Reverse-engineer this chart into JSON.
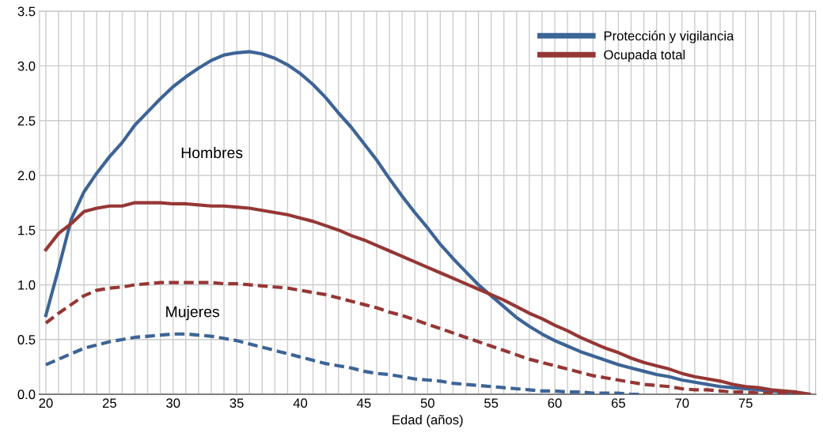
{
  "chart_data": {
    "type": "line",
    "xlabel": "Edad (años)",
    "x": [
      20,
      21,
      22,
      23,
      24,
      25,
      26,
      27,
      28,
      29,
      30,
      31,
      32,
      33,
      34,
      35,
      36,
      37,
      38,
      39,
      40,
      41,
      42,
      43,
      44,
      45,
      46,
      47,
      48,
      49,
      50,
      51,
      52,
      53,
      54,
      55,
      56,
      57,
      58,
      59,
      60,
      61,
      62,
      63,
      64,
      65,
      66,
      67,
      68,
      69,
      70,
      71,
      72,
      73,
      74,
      75,
      76,
      77,
      78,
      79,
      80
    ],
    "series": [
      {
        "name": "Protección y vigilancia",
        "color": "#3d6496",
        "line_style": "solid",
        "values": [
          0.72,
          1.15,
          1.6,
          1.85,
          2.02,
          2.17,
          2.3,
          2.46,
          2.58,
          2.7,
          2.81,
          2.9,
          2.98,
          3.05,
          3.1,
          3.12,
          3.13,
          3.11,
          3.07,
          3.01,
          2.93,
          2.83,
          2.71,
          2.57,
          2.44,
          2.29,
          2.14,
          1.97,
          1.81,
          1.66,
          1.52,
          1.37,
          1.24,
          1.12,
          1.0,
          0.9,
          0.8,
          0.7,
          0.62,
          0.55,
          0.49,
          0.44,
          0.39,
          0.35,
          0.31,
          0.27,
          0.24,
          0.21,
          0.18,
          0.16,
          0.13,
          0.11,
          0.09,
          0.07,
          0.06,
          0.05,
          0.04,
          0.03,
          0.02,
          0.01,
          0.0
        ]
      },
      {
        "name": "Ocupada total",
        "color": "#953735",
        "line_style": "solid",
        "values": [
          1.32,
          1.47,
          1.56,
          1.67,
          1.7,
          1.72,
          1.72,
          1.75,
          1.75,
          1.75,
          1.74,
          1.74,
          1.73,
          1.72,
          1.72,
          1.71,
          1.7,
          1.68,
          1.66,
          1.64,
          1.61,
          1.58,
          1.54,
          1.5,
          1.45,
          1.41,
          1.36,
          1.31,
          1.26,
          1.21,
          1.16,
          1.11,
          1.06,
          1.01,
          0.96,
          0.91,
          0.86,
          0.8,
          0.74,
          0.69,
          0.63,
          0.58,
          0.52,
          0.47,
          0.42,
          0.38,
          0.33,
          0.29,
          0.26,
          0.23,
          0.19,
          0.16,
          0.14,
          0.12,
          0.09,
          0.07,
          0.06,
          0.04,
          0.03,
          0.02,
          0.0
        ]
      },
      {
        "color": "#953735",
        "line_style": "dashed",
        "values": [
          0.65,
          0.74,
          0.82,
          0.9,
          0.95,
          0.97,
          0.98,
          1.0,
          1.01,
          1.02,
          1.02,
          1.02,
          1.02,
          1.02,
          1.01,
          1.01,
          1.0,
          0.99,
          0.98,
          0.97,
          0.95,
          0.93,
          0.91,
          0.88,
          0.85,
          0.82,
          0.79,
          0.75,
          0.72,
          0.68,
          0.64,
          0.6,
          0.56,
          0.52,
          0.48,
          0.44,
          0.4,
          0.36,
          0.32,
          0.29,
          0.26,
          0.23,
          0.2,
          0.17,
          0.15,
          0.13,
          0.11,
          0.09,
          0.08,
          0.07,
          0.05,
          0.04,
          0.04,
          0.03,
          0.02,
          0.02,
          0.01,
          0.01,
          0.01,
          0.0,
          0.0
        ]
      },
      {
        "color": "#3d6496",
        "line_style": "dashed",
        "values": [
          0.27,
          0.32,
          0.37,
          0.42,
          0.45,
          0.48,
          0.5,
          0.52,
          0.53,
          0.54,
          0.55,
          0.55,
          0.54,
          0.53,
          0.51,
          0.49,
          0.46,
          0.43,
          0.4,
          0.37,
          0.34,
          0.31,
          0.28,
          0.26,
          0.24,
          0.21,
          0.19,
          0.18,
          0.16,
          0.14,
          0.13,
          0.12,
          0.1,
          0.09,
          0.08,
          0.07,
          0.06,
          0.05,
          0.04,
          0.03,
          0.03,
          0.02,
          0.02,
          0.01,
          0.01,
          0.01,
          0.0,
          0.0,
          null,
          null,
          null,
          null,
          null,
          null,
          null,
          null,
          null,
          null,
          null,
          null,
          null
        ]
      }
    ],
    "xlim": [
      19.5,
      80.5
    ],
    "xticks": [
      20,
      {
        "value": 21,
        "label": null
      },
      {
        "value": 22,
        "label": null
      },
      {
        "value": 23,
        "label": null
      },
      {
        "value": 24,
        "label": null
      },
      25,
      {
        "value": 26,
        "label": null
      },
      {
        "value": 27,
        "label": null
      },
      {
        "value": 28,
        "label": null
      },
      {
        "value": 29,
        "label": null
      },
      30,
      {
        "value": 31,
        "label": null
      },
      {
        "value": 32,
        "label": null
      },
      {
        "value": 33,
        "label": null
      },
      {
        "value": 34,
        "label": null
      },
      35,
      {
        "value": 36,
        "label": null
      },
      {
        "value": 37,
        "label": null
      },
      {
        "value": 38,
        "label": null
      },
      {
        "value": 39,
        "label": null
      },
      40,
      {
        "value": 41,
        "label": null
      },
      {
        "value": 42,
        "label": null
      },
      {
        "value": 43,
        "label": null
      },
      {
        "value": 44,
        "label": null
      },
      45,
      {
        "value": 46,
        "label": null
      },
      {
        "value": 47,
        "label": null
      },
      {
        "value": 48,
        "label": null
      },
      {
        "value": 49,
        "label": null
      },
      50,
      {
        "value": 51,
        "label": null
      },
      {
        "value": 52,
        "label": null
      },
      {
        "value": 53,
        "label": null
      },
      {
        "value": 54,
        "label": null
      },
      55,
      {
        "value": 56,
        "label": null
      },
      {
        "value": 57,
        "label": null
      },
      {
        "value": 58,
        "label": null
      },
      {
        "value": 59,
        "label": null
      },
      60,
      {
        "value": 61,
        "label": null
      },
      {
        "value": 62,
        "label": null
      },
      {
        "value": 63,
        "label": null
      },
      {
        "value": 64,
        "label": null
      },
      65,
      {
        "value": 66,
        "label": null
      },
      {
        "value": 67,
        "label": null
      },
      {
        "value": 68,
        "label": null
      },
      {
        "value": 69,
        "label": null
      },
      70,
      {
        "value": 71,
        "label": null
      },
      {
        "value": 72,
        "label": null
      },
      {
        "value": 73,
        "label": null
      },
      {
        "value": 74,
        "label": null
      },
      75,
      {
        "value": 76,
        "label": null
      },
      {
        "value": 77,
        "label": null
      },
      {
        "value": 78,
        "label": null
      },
      {
        "value": 79,
        "label": null
      },
      {
        "value": 80,
        "label": null
      }
    ],
    "ylim": [
      0,
      3.5
    ],
    "yticks": [
      {
        "value": 0,
        "label": "0.0"
      },
      {
        "value": 0.5,
        "label": "0.5"
      },
      {
        "value": 1,
        "label": "1.0"
      },
      {
        "value": 1.5,
        "label": "1.5"
      },
      {
        "value": 2,
        "label": "2.0"
      },
      {
        "value": 2.5,
        "label": "2.5"
      },
      {
        "value": 3,
        "label": "3.0"
      },
      {
        "value": 3.5,
        "label": "3.5"
      }
    ],
    "grid": true,
    "legend": "top right",
    "annotations": [
      "Hombres",
      "Mujeres"
    ]
  }
}
